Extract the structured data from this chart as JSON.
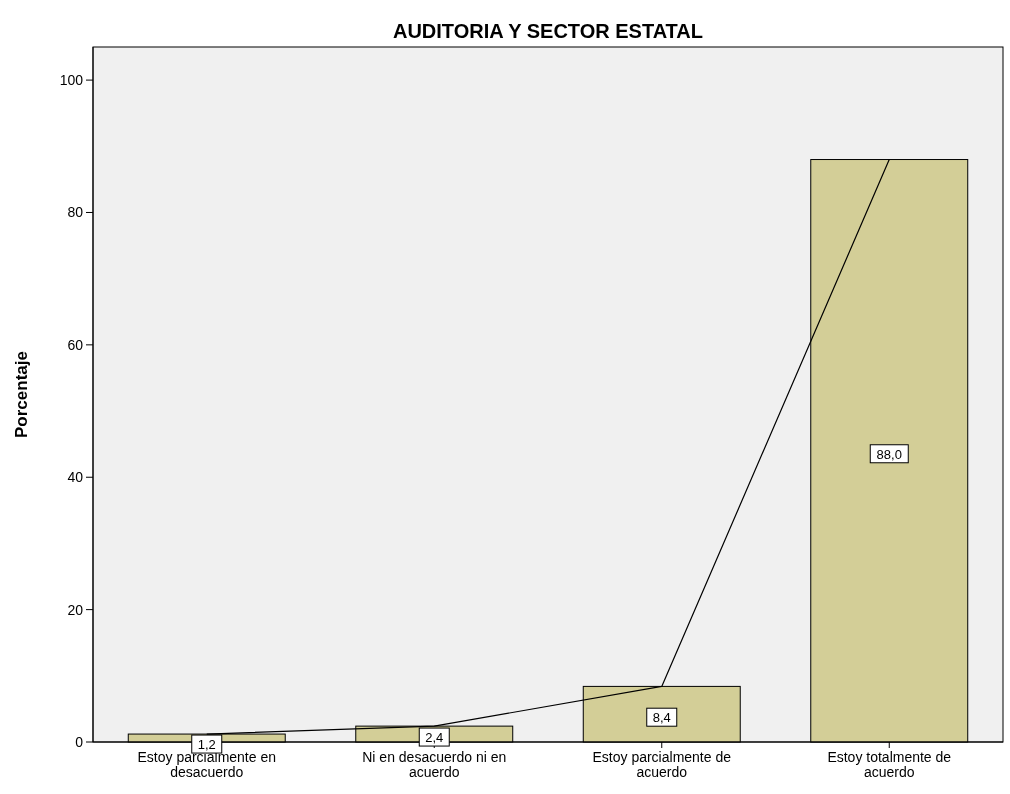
{
  "chart_data": {
    "type": "bar",
    "title": "AUDITORIA Y SECTOR ESTATAL",
    "ylabel": "Porcentaje",
    "categories": [
      "Estoy parcialmente en desacuerdo",
      "Ni en desacuerdo ni en acuerdo",
      "Estoy parcialmente de acuerdo",
      "Estoy totalmente de acuerdo"
    ],
    "series": [
      {
        "type": "bar",
        "color": "#d3ce97",
        "values": [
          1.2,
          2.4,
          8.4,
          88.0
        ],
        "value_labels": [
          "1,2",
          "2,4",
          "8,4",
          "88,0"
        ]
      },
      {
        "type": "line",
        "color": "#000000",
        "values": [
          1.2,
          2.4,
          8.4,
          88.0
        ]
      }
    ],
    "ylim": [
      0,
      105
    ],
    "yticks": [
      0,
      20,
      40,
      60,
      80,
      100
    ],
    "grid": false
  }
}
